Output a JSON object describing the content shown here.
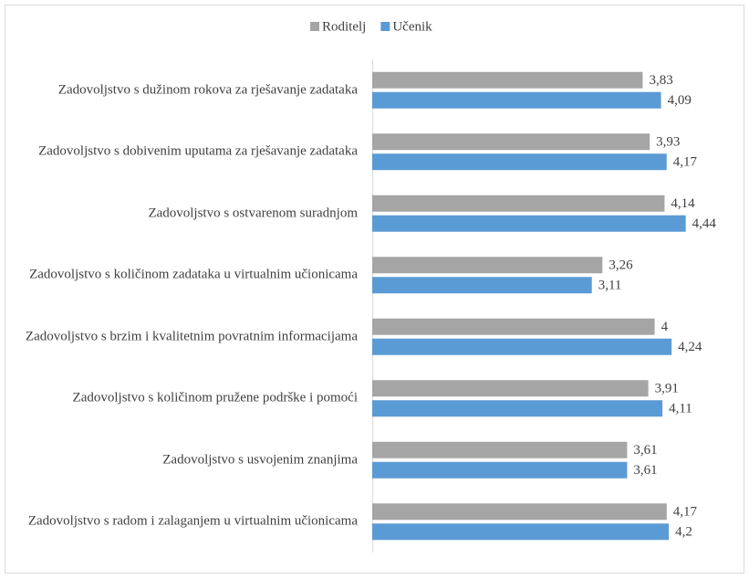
{
  "chart_data": {
    "type": "barh",
    "categories": [
      "Zadovoljstvo s dužinom rokova za rješavanje zadataka",
      "Zadovoljstvo s dobivenim uputama za rješavanje zadataka",
      "Zadovoljstvo s ostvarenom suradnjom",
      "Zadovoljstvo s količinom zadataka u virtualnim učionicama",
      "Zadovoljstvo s brzim i kvalitetnim povratnim informacijama",
      "Zadovoljstvo s količinom pružene podrške i pomoći",
      "Zadovoljstvo s usvojenim znanjima",
      "Zadovoljstvo s radom i zalaganjem u virtualnim učionicama"
    ],
    "series": [
      {
        "name": "Roditelj",
        "color": "#a5a5a5",
        "values": [
          3.83,
          3.93,
          4.14,
          3.26,
          4,
          3.91,
          3.61,
          4.17
        ],
        "value_labels": [
          "3,83",
          "3,93",
          "4,14",
          "3,26",
          "4",
          "3,91",
          "3,61",
          "4,17"
        ]
      },
      {
        "name": "Učenik",
        "color": "#5b9bd5",
        "values": [
          4.09,
          4.17,
          4.44,
          3.11,
          4.24,
          4.11,
          3.61,
          4.2
        ],
        "value_labels": [
          "4,09",
          "4,17",
          "4,44",
          "3,11",
          "4,24",
          "4,11",
          "3,61",
          "4,2"
        ]
      }
    ],
    "xlim": [
      0,
      5
    ],
    "legend": "top"
  }
}
